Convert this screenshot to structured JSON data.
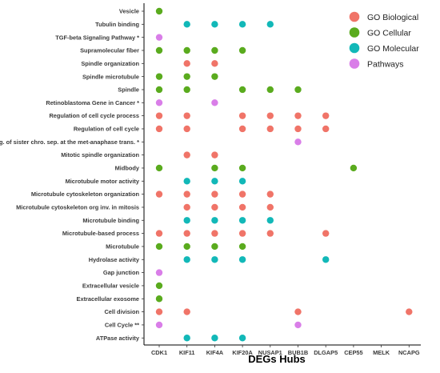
{
  "chart_data": {
    "type": "scatter",
    "xlabel": "DEGs Hubs",
    "ylabel": "",
    "categories_x": [
      "CDK1",
      "KIF11",
      "KIF4A",
      "KIF20A",
      "NUSAP1",
      "BUB1B",
      "DLGAP5",
      "CEP55",
      "MELK",
      "NCAPG"
    ],
    "categories_y": [
      "Vesicle",
      "Tubulin binding",
      "TGF-beta Signaling Pathway *",
      "Supramolecular fiber",
      "Spindle organization",
      "Spindle microtubule",
      "Spindle",
      "Retinoblastoma Gene in Cancer *",
      "Regulation of cell cycle process",
      "Regulation of cell cycle",
      "Reg. of sister chro. sep. at the met-anaphase trans. *",
      "Mitotic spindle organization",
      "Midbody",
      "Microtubule motor activity",
      "Microtubule cytoskeleton organization",
      "Microtubule cytoskeleton org inv. in mitosis",
      "Microtubule binding",
      "Microtubule-based process",
      "Microtubule",
      "Hydrolase activity",
      "Gap junction",
      "Extracellular vesicle",
      "Extracellular exosome",
      "Cell division",
      "Cell Cycle **",
      "ATPase activity"
    ],
    "legend": {
      "placement": "top-right",
      "entries": [
        "GO Biological",
        "GO Cellular",
        "GO Molecular",
        "Pathways"
      ]
    },
    "series": [
      {
        "name": "GO Biological",
        "color": "#f07468",
        "points": [
          {
            "x": "KIF11",
            "y": "Spindle organization"
          },
          {
            "x": "KIF4A",
            "y": "Spindle organization"
          },
          {
            "x": "CDK1",
            "y": "Regulation of cell cycle process"
          },
          {
            "x": "KIF11",
            "y": "Regulation of cell cycle process"
          },
          {
            "x": "KIF20A",
            "y": "Regulation of cell cycle process"
          },
          {
            "x": "NUSAP1",
            "y": "Regulation of cell cycle process"
          },
          {
            "x": "BUB1B",
            "y": "Regulation of cell cycle process"
          },
          {
            "x": "DLGAP5",
            "y": "Regulation of cell cycle process"
          },
          {
            "x": "CDK1",
            "y": "Regulation of cell cycle"
          },
          {
            "x": "KIF11",
            "y": "Regulation of cell cycle"
          },
          {
            "x": "KIF20A",
            "y": "Regulation of cell cycle"
          },
          {
            "x": "NUSAP1",
            "y": "Regulation of cell cycle"
          },
          {
            "x": "BUB1B",
            "y": "Regulation of cell cycle"
          },
          {
            "x": "DLGAP5",
            "y": "Regulation of cell cycle"
          },
          {
            "x": "KIF11",
            "y": "Mitotic spindle organization"
          },
          {
            "x": "KIF4A",
            "y": "Mitotic spindle organization"
          },
          {
            "x": "CDK1",
            "y": "Microtubule cytoskeleton organization"
          },
          {
            "x": "KIF11",
            "y": "Microtubule cytoskeleton organization"
          },
          {
            "x": "KIF4A",
            "y": "Microtubule cytoskeleton organization"
          },
          {
            "x": "KIF20A",
            "y": "Microtubule cytoskeleton organization"
          },
          {
            "x": "NUSAP1",
            "y": "Microtubule cytoskeleton organization"
          },
          {
            "x": "KIF11",
            "y": "Microtubule cytoskeleton org inv. in mitosis"
          },
          {
            "x": "KIF4A",
            "y": "Microtubule cytoskeleton org inv. in mitosis"
          },
          {
            "x": "KIF20A",
            "y": "Microtubule cytoskeleton org inv. in mitosis"
          },
          {
            "x": "NUSAP1",
            "y": "Microtubule cytoskeleton org inv. in mitosis"
          },
          {
            "x": "CDK1",
            "y": "Microtubule-based process"
          },
          {
            "x": "KIF11",
            "y": "Microtubule-based process"
          },
          {
            "x": "KIF4A",
            "y": "Microtubule-based process"
          },
          {
            "x": "KIF20A",
            "y": "Microtubule-based process"
          },
          {
            "x": "NUSAP1",
            "y": "Microtubule-based process"
          },
          {
            "x": "DLGAP5",
            "y": "Microtubule-based process"
          },
          {
            "x": "CDK1",
            "y": "Cell division"
          },
          {
            "x": "KIF11",
            "y": "Cell division"
          },
          {
            "x": "BUB1B",
            "y": "Cell division"
          },
          {
            "x": "NCAPG",
            "y": "Cell division"
          }
        ]
      },
      {
        "name": "GO Cellular",
        "color": "#5aab1e",
        "points": [
          {
            "x": "CDK1",
            "y": "Vesicle"
          },
          {
            "x": "CDK1",
            "y": "Supramolecular fiber"
          },
          {
            "x": "KIF11",
            "y": "Supramolecular fiber"
          },
          {
            "x": "KIF4A",
            "y": "Supramolecular fiber"
          },
          {
            "x": "KIF20A",
            "y": "Supramolecular fiber"
          },
          {
            "x": "CDK1",
            "y": "Spindle microtubule"
          },
          {
            "x": "KIF11",
            "y": "Spindle microtubule"
          },
          {
            "x": "KIF4A",
            "y": "Spindle microtubule"
          },
          {
            "x": "CDK1",
            "y": "Spindle"
          },
          {
            "x": "KIF11",
            "y": "Spindle"
          },
          {
            "x": "KIF20A",
            "y": "Spindle"
          },
          {
            "x": "NUSAP1",
            "y": "Spindle"
          },
          {
            "x": "BUB1B",
            "y": "Spindle"
          },
          {
            "x": "CDK1",
            "y": "Midbody"
          },
          {
            "x": "KIF4A",
            "y": "Midbody"
          },
          {
            "x": "KIF20A",
            "y": "Midbody"
          },
          {
            "x": "CEP55",
            "y": "Midbody"
          },
          {
            "x": "CDK1",
            "y": "Microtubule"
          },
          {
            "x": "KIF11",
            "y": "Microtubule"
          },
          {
            "x": "KIF4A",
            "y": "Microtubule"
          },
          {
            "x": "KIF20A",
            "y": "Microtubule"
          },
          {
            "x": "CDK1",
            "y": "Extracellular vesicle"
          },
          {
            "x": "CDK1",
            "y": "Extracellular exosome"
          }
        ]
      },
      {
        "name": "GO Molecular",
        "color": "#12b8b8",
        "points": [
          {
            "x": "KIF11",
            "y": "Tubulin binding"
          },
          {
            "x": "KIF4A",
            "y": "Tubulin binding"
          },
          {
            "x": "KIF20A",
            "y": "Tubulin binding"
          },
          {
            "x": "NUSAP1",
            "y": "Tubulin binding"
          },
          {
            "x": "KIF11",
            "y": "Microtubule motor activity"
          },
          {
            "x": "KIF4A",
            "y": "Microtubule motor activity"
          },
          {
            "x": "KIF20A",
            "y": "Microtubule motor activity"
          },
          {
            "x": "KIF11",
            "y": "Microtubule binding"
          },
          {
            "x": "KIF4A",
            "y": "Microtubule binding"
          },
          {
            "x": "KIF20A",
            "y": "Microtubule binding"
          },
          {
            "x": "NUSAP1",
            "y": "Microtubule binding"
          },
          {
            "x": "KIF11",
            "y": "Hydrolase activity"
          },
          {
            "x": "KIF4A",
            "y": "Hydrolase activity"
          },
          {
            "x": "KIF20A",
            "y": "Hydrolase activity"
          },
          {
            "x": "DLGAP5",
            "y": "Hydrolase activity"
          },
          {
            "x": "KIF11",
            "y": "ATPase activity"
          },
          {
            "x": "KIF4A",
            "y": "ATPase activity"
          },
          {
            "x": "KIF20A",
            "y": "ATPase activity"
          }
        ]
      },
      {
        "name": "Pathways",
        "color": "#d97ee8",
        "points": [
          {
            "x": "CDK1",
            "y": "TGF-beta Signaling Pathway *"
          },
          {
            "x": "CDK1",
            "y": "Retinoblastoma Gene in Cancer *"
          },
          {
            "x": "KIF4A",
            "y": "Retinoblastoma Gene in Cancer *"
          },
          {
            "x": "BUB1B",
            "y": "Reg. of sister chro. sep. at the met-anaphase trans. *"
          },
          {
            "x": "CDK1",
            "y": "Gap junction"
          },
          {
            "x": "CDK1",
            "y": "Cell Cycle **"
          },
          {
            "x": "BUB1B",
            "y": "Cell Cycle **"
          }
        ]
      }
    ],
    "grid": false
  }
}
